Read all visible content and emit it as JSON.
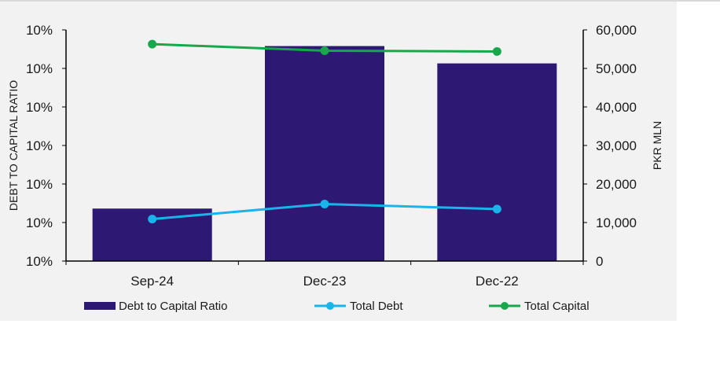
{
  "chart_data": {
    "type": "bar+line",
    "categories": [
      "Sep-24",
      "Dec-23",
      "Dec-22"
    ],
    "left_axis": {
      "label": "DEBT TO CAPITAL RATIO",
      "tick_labels": [
        "10%",
        "10%",
        "10%",
        "10%",
        "10%",
        "10%",
        "10%"
      ]
    },
    "right_axis": {
      "label": "PKR MLN",
      "ylim": [
        0,
        60000
      ],
      "ticks": [
        0,
        10000,
        20000,
        30000,
        40000,
        50000,
        60000
      ],
      "tick_labels": [
        "0",
        "10,000",
        "20,000",
        "30,000",
        "40,000",
        "50,000",
        "60,000"
      ]
    },
    "bar_series": {
      "name": "Debt to Capital Ratio",
      "color": "#2d1873",
      "values": [
        0.227,
        0.93,
        0.855
      ]
    },
    "line_series": [
      {
        "name": "Total Debt",
        "color": "#19b4ea",
        "values": [
          10900,
          14800,
          13500
        ]
      },
      {
        "name": "Total Capital",
        "color": "#18a84c",
        "values": [
          56300,
          54600,
          54400
        ]
      }
    ],
    "legend": [
      "Debt to Capital Ratio",
      "Total Debt",
      "Total Capital"
    ],
    "legend_position": "bottom",
    "grid": false
  }
}
